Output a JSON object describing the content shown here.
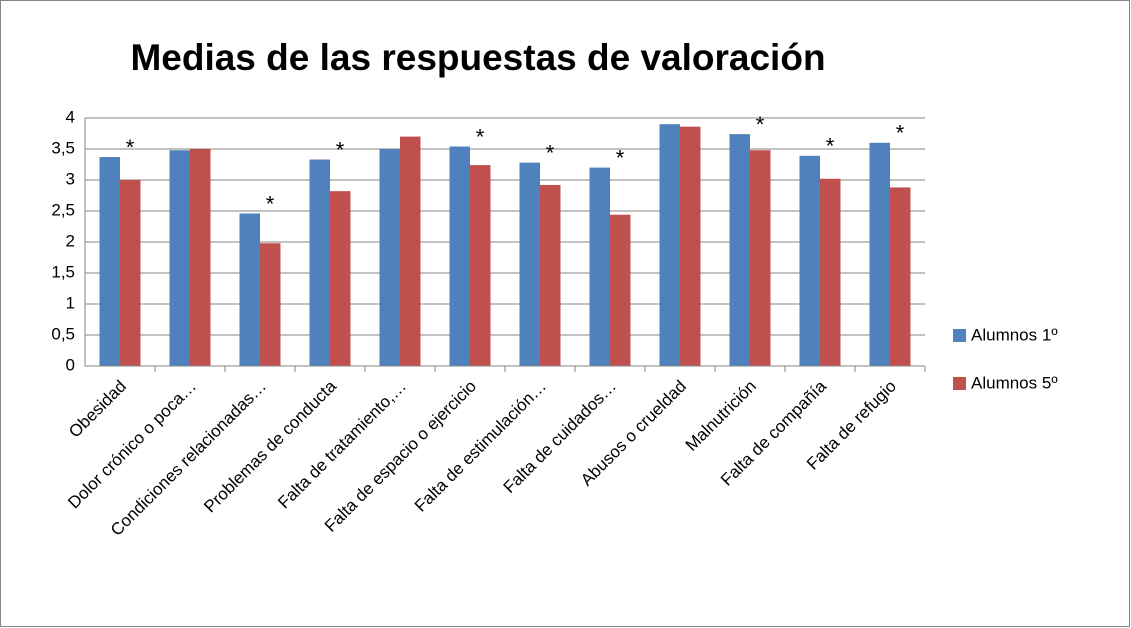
{
  "chart_data": {
    "type": "bar",
    "title": "Medias de las respuestas de valoración",
    "categories": [
      "Obesidad",
      "Dolor crónico o poca…",
      "Condiciones relacionadas…",
      "Problemas de conducta",
      "Falta de tratamiento,…",
      "Falta de espacio o ejercicio",
      "Falta de estimulación…",
      "Falta de cuidados…",
      "Abusos o crueldad",
      "Malnutrición",
      "Falta de compañía",
      "Falta de refugio"
    ],
    "series": [
      {
        "name": "Alumnos 1º",
        "color": "#4f81bd",
        "values": [
          3.37,
          3.48,
          2.46,
          3.33,
          3.5,
          3.54,
          3.28,
          3.2,
          3.9,
          3.74,
          3.39,
          3.6
        ]
      },
      {
        "name": "Alumnos 5º",
        "color": "#c0504d",
        "values": [
          3.0,
          3.5,
          1.98,
          2.82,
          3.7,
          3.24,
          2.92,
          2.44,
          3.86,
          3.48,
          3.02,
          2.88
        ]
      }
    ],
    "annotations": [
      "*",
      null,
      "*",
      "*",
      null,
      "*",
      "*",
      "*",
      null,
      "*",
      "*",
      "*"
    ],
    "ylim": [
      0,
      4
    ],
    "yticks": [
      0,
      {
        "value": 0.5,
        "label": "0,5"
      },
      1,
      {
        "value": 1.5,
        "label": "1,5"
      },
      2,
      {
        "value": 2.5,
        "label": "2,5"
      },
      3,
      {
        "value": 3.5,
        "label": "3,5"
      },
      4
    ],
    "grid": true,
    "legend": "right"
  }
}
